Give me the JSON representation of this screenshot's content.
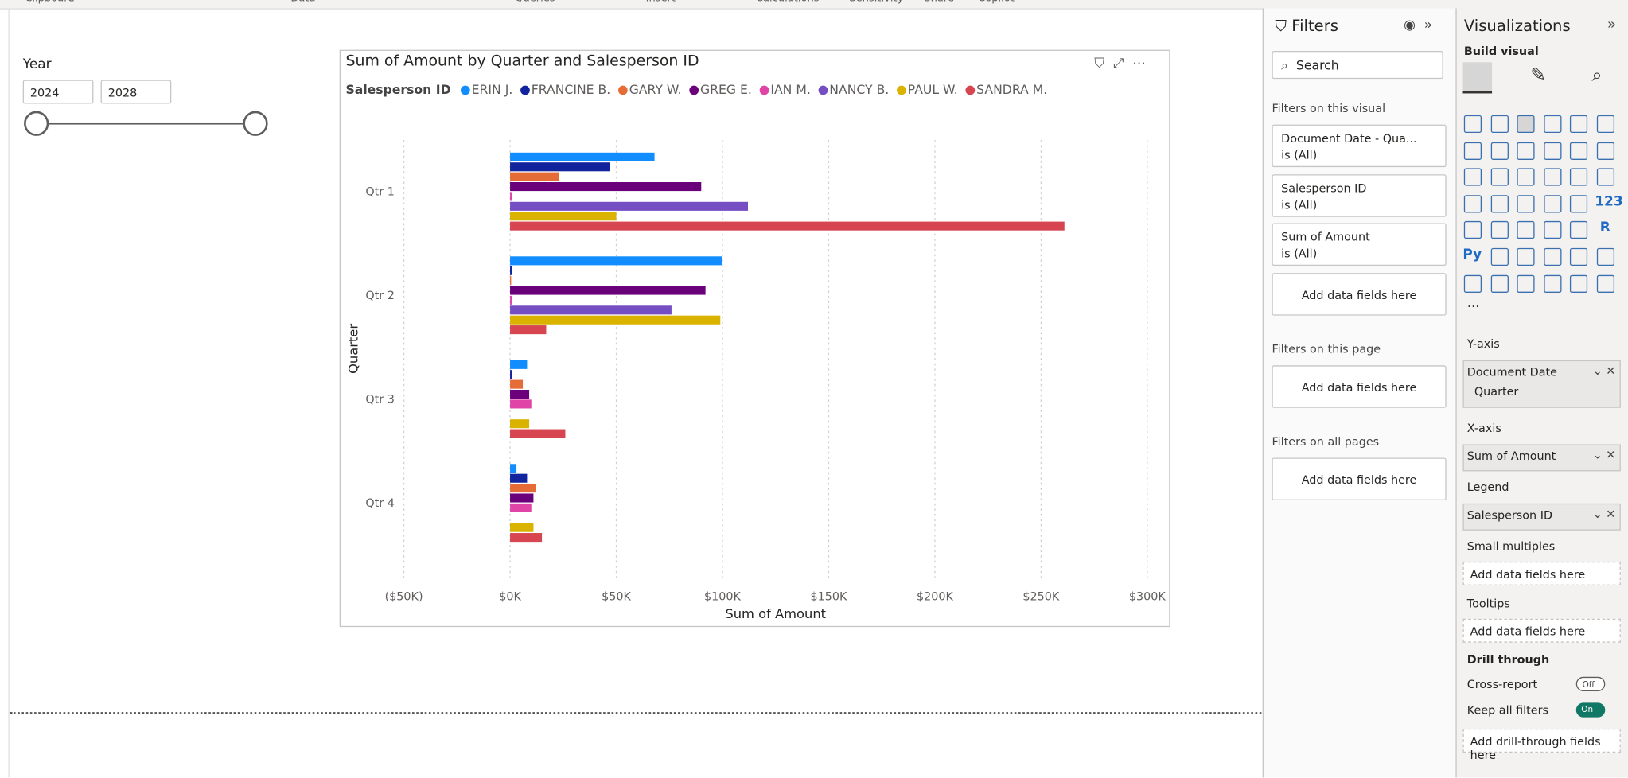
{
  "ribbon": [
    "Clipboard",
    "Data",
    "Queries",
    "Insert",
    "Calculations",
    "Sensitivity",
    "Share",
    "Copilot"
  ],
  "slicer": {
    "title": "Year",
    "start": "2024",
    "end": "2028"
  },
  "chart_data": {
    "type": "hbar",
    "title": "Sum of Amount by Quarter and Salesperson ID",
    "legend_title": "Salesperson ID",
    "x_label": "Sum of Amount",
    "y_label": "Quarter",
    "categories": [
      "Qtr 1",
      "Qtr 2",
      "Qtr 3",
      "Qtr 4"
    ],
    "series": [
      {
        "name": "ERIN J.",
        "color": "#118DFF",
        "values": [
          68000,
          100000,
          8000,
          3000
        ]
      },
      {
        "name": "FRANCINE B.",
        "color": "#12239E",
        "values": [
          47000,
          1000,
          1000,
          8000
        ]
      },
      {
        "name": "GARY W.",
        "color": "#E66C37",
        "values": [
          23000,
          500,
          6000,
          12000
        ]
      },
      {
        "name": "GREG E.",
        "color": "#6B007B",
        "values": [
          90000,
          92000,
          9000,
          11000
        ]
      },
      {
        "name": "IAN M.",
        "color": "#E044A7",
        "values": [
          1000,
          1000,
          10000,
          10000
        ]
      },
      {
        "name": "NANCY B.",
        "color": "#744EC2",
        "values": [
          112000,
          76000,
          null,
          null
        ]
      },
      {
        "name": "PAUL W.",
        "color": "#D9B300",
        "values": [
          50000,
          99000,
          9000,
          11000
        ]
      },
      {
        "name": "SANDRA M.",
        "color": "#D64550",
        "values": [
          261000,
          17000,
          26000,
          15000
        ]
      }
    ],
    "xlim": [
      -50000,
      300000
    ],
    "xticks": [
      {
        "value": -50000,
        "label": "($50K)"
      },
      {
        "value": 0,
        "label": "$0K"
      },
      {
        "value": 50000,
        "label": "$50K"
      },
      {
        "value": 100000,
        "label": "$100K"
      },
      {
        "value": 150000,
        "label": "$150K"
      },
      {
        "value": 200000,
        "label": "$200K"
      },
      {
        "value": 250000,
        "label": "$250K"
      },
      {
        "value": 300000,
        "label": "$300K"
      }
    ],
    "grid": true,
    "legend": "top"
  },
  "filters": {
    "title": "Filters",
    "search": "Search",
    "visual_section": "Filters on this visual",
    "visual_filters": [
      {
        "field": "Document Date - Qua...",
        "state": "is (All)"
      },
      {
        "field": "Salesperson ID",
        "state": "is (All)"
      },
      {
        "field": "Sum of Amount",
        "state": "is (All)"
      }
    ],
    "add": "Add data fields here",
    "page_section": "Filters on this page",
    "all_section": "Filters on all pages"
  },
  "visualizations": {
    "title": "Visualizations",
    "build": "Build visual",
    "icon_labels": [
      "123",
      "R",
      "Py"
    ],
    "wells": [
      {
        "label": "Y-axis",
        "fields": [
          "Document Date",
          "Quarter"
        ]
      },
      {
        "label": "X-axis",
        "fields": [
          "Sum of Amount"
        ]
      },
      {
        "label": "Legend",
        "fields": [
          "Salesperson ID"
        ]
      },
      {
        "label": "Small multiples",
        "placeholder": "Add data fields here"
      },
      {
        "label": "Tooltips",
        "placeholder": "Add data fields here"
      }
    ],
    "drill": {
      "title": "Drill through",
      "cross": "Cross-report",
      "cross_state": "Off",
      "keep": "Keep all filters",
      "keep_state": "On",
      "add": "Add drill-through fields here"
    }
  }
}
